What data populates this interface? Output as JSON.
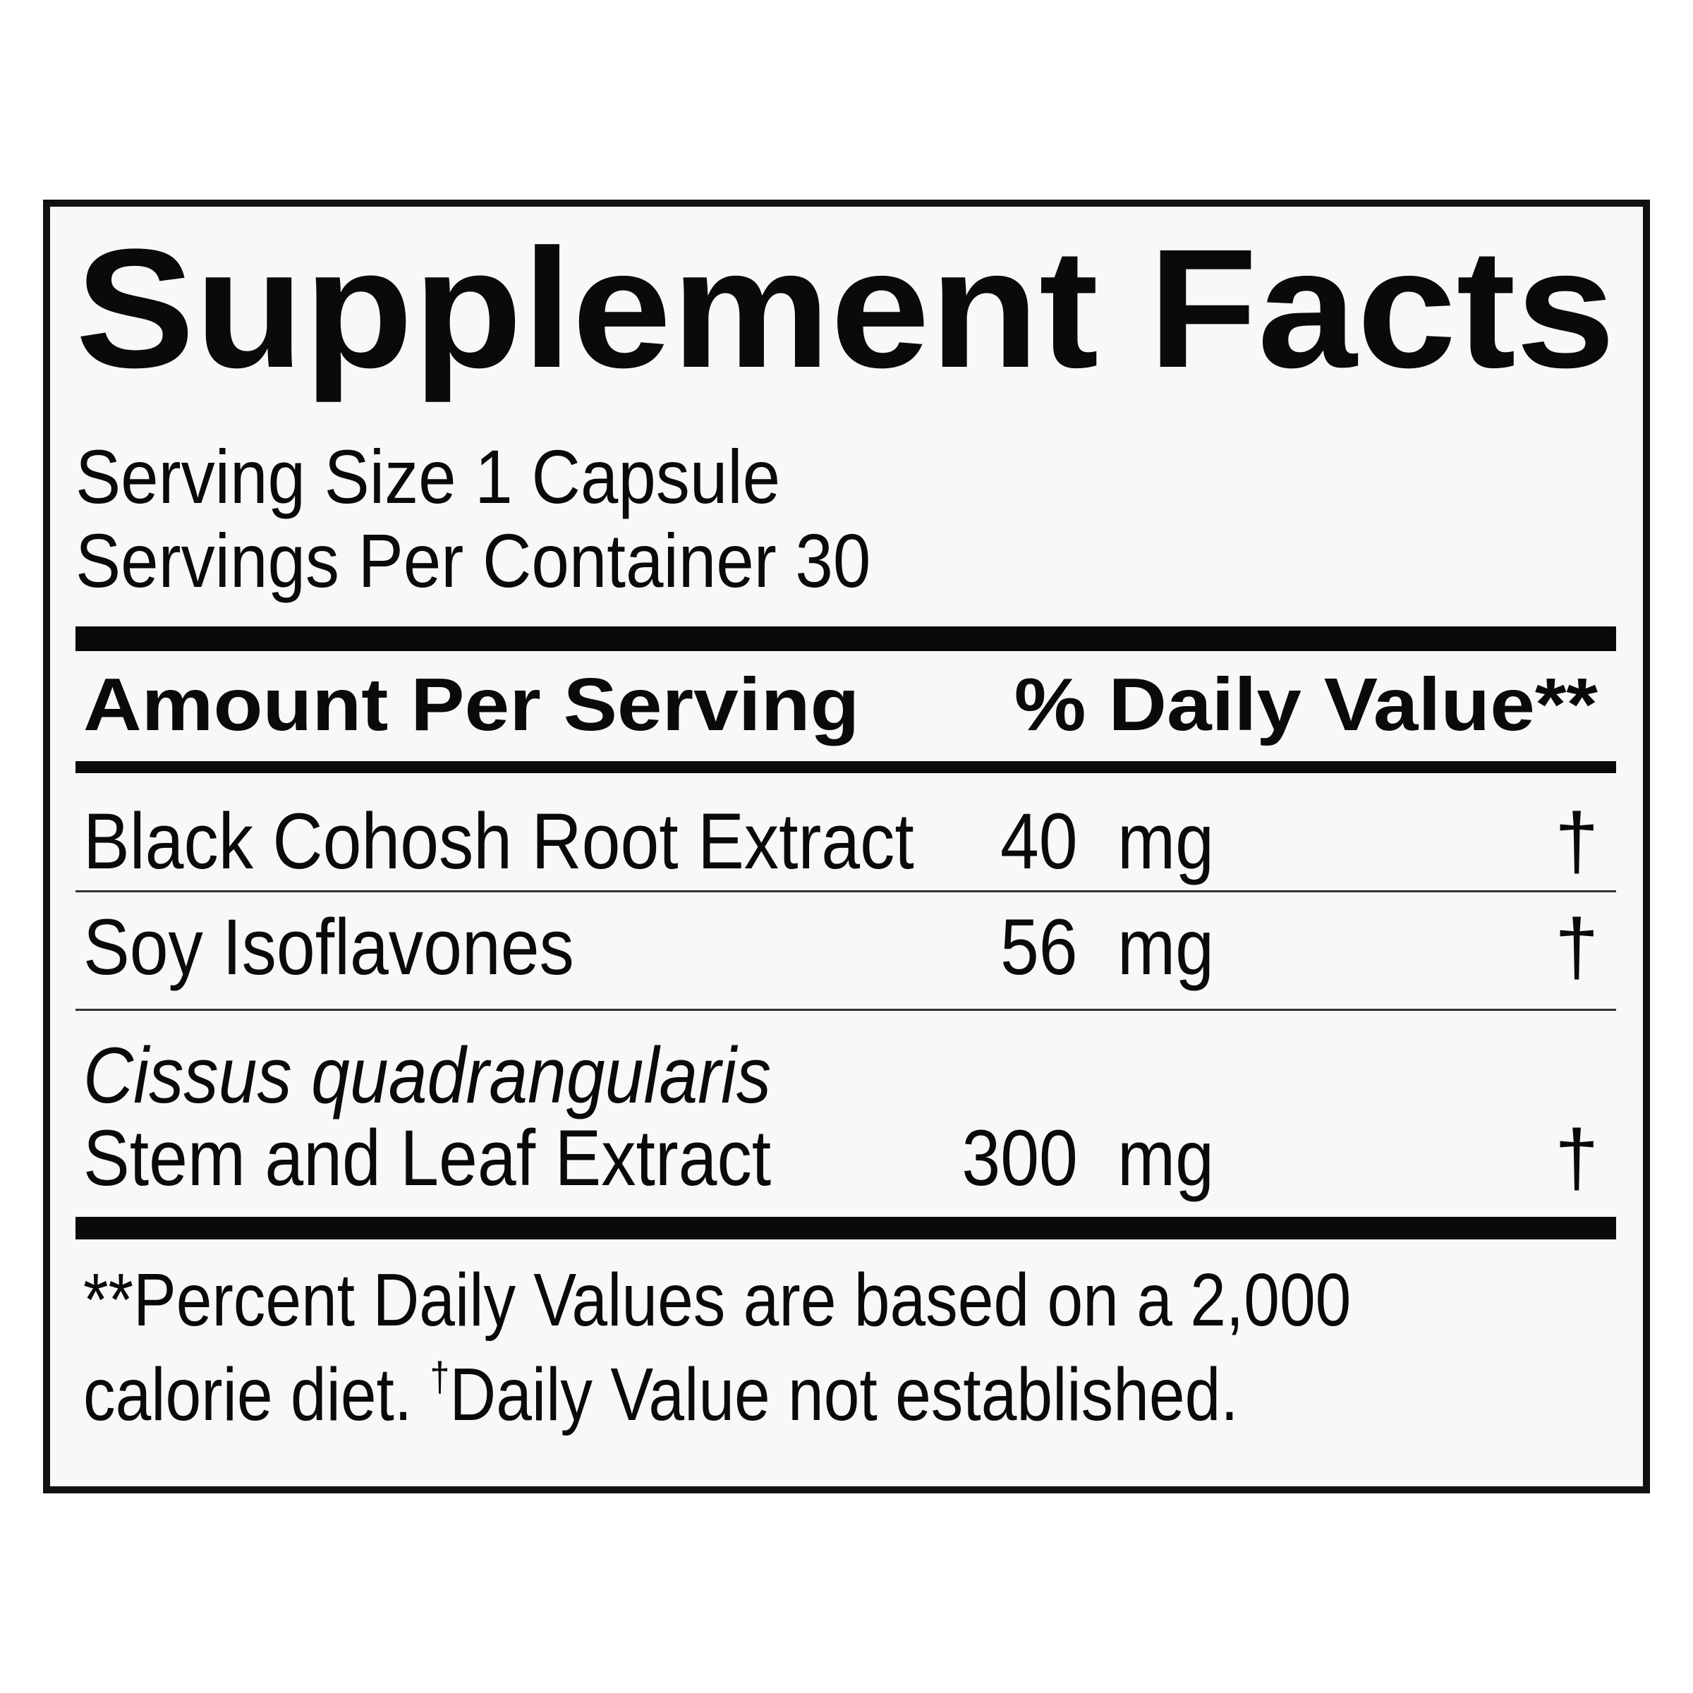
{
  "panel": {
    "title": "Supplement Facts",
    "serving_size": "Serving Size 1 Capsule",
    "servings_per_container": "Servings Per Container 30",
    "header": {
      "amount_label": "Amount Per Serving",
      "daily_value_label": "% Daily Value**"
    },
    "ingredients": [
      {
        "name": "Black Cohosh Root Extract",
        "amount": "40",
        "unit": "mg",
        "daily_value": "†"
      },
      {
        "name": "Soy Isoflavones",
        "amount": "56",
        "unit": "mg",
        "daily_value": "†"
      },
      {
        "name_italic": "Cissus quadrangularis",
        "name": "Stem and Leaf Extract",
        "amount": "300",
        "unit": "mg",
        "daily_value": "†"
      }
    ],
    "footnote": {
      "line1": "**Percent Daily Values are based on a 2,000",
      "line2_start": "calorie diet.",
      "dagger": "†",
      "line2_end": "Daily Value not established."
    }
  }
}
